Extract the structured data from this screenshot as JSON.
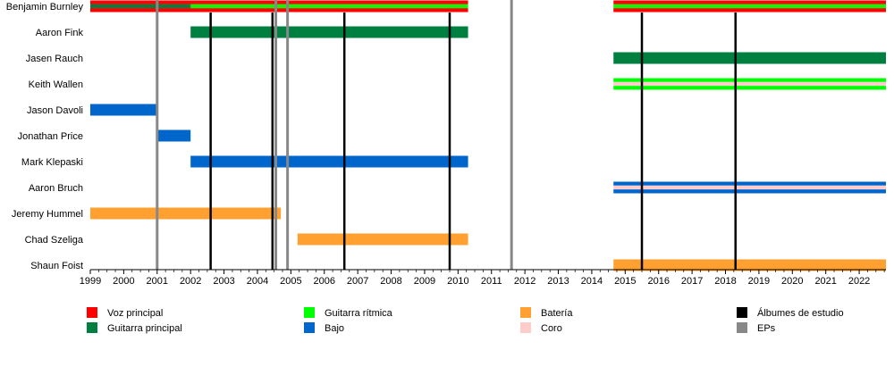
{
  "chart_data": {
    "type": "timeline",
    "title": "",
    "xlabel": "",
    "ylabel": "",
    "xlim": [
      1999,
      2022.8
    ],
    "x_ticks": [
      1999,
      2000,
      2001,
      2002,
      2003,
      2004,
      2005,
      2006,
      2007,
      2008,
      2009,
      2010,
      2011,
      2012,
      2013,
      2014,
      2015,
      2016,
      2017,
      2018,
      2019,
      2020,
      2021,
      2022
    ],
    "role_colors": {
      "voz": "#ff0000",
      "guitarra_principal": "#008040",
      "guitarra_ritmica": "#00ff00",
      "bajo": "#0066cc",
      "bateria": "#ffa030",
      "coro": "#ffcccc",
      "albumes": "#000000",
      "eps": "#888888"
    },
    "members": [
      {
        "name": "Benjamin Burnley",
        "bars": [
          {
            "start": 1999,
            "end": 2010.3,
            "roles": [
              "voz",
              "guitarra_ritmica",
              "voz"
            ]
          },
          {
            "start": 1999,
            "end": 2002,
            "roles": [
              "voz",
              "guitarra_principal",
              "voz"
            ]
          },
          {
            "start": 2014.65,
            "end": 2022.8,
            "roles": [
              "voz",
              "guitarra_ritmica",
              "voz"
            ]
          }
        ]
      },
      {
        "name": "Aaron Fink",
        "bars": [
          {
            "start": 2002,
            "end": 2010.3,
            "roles": [
              "guitarra_principal"
            ]
          }
        ]
      },
      {
        "name": "Jasen Rauch",
        "bars": [
          {
            "start": 2014.65,
            "end": 2022.8,
            "roles": [
              "guitarra_principal"
            ]
          }
        ]
      },
      {
        "name": "Keith Wallen",
        "bars": [
          {
            "start": 2014.65,
            "end": 2022.8,
            "roles": [
              "guitarra_ritmica",
              "coro",
              "guitarra_ritmica"
            ]
          }
        ]
      },
      {
        "name": "Jason Davoli",
        "bars": [
          {
            "start": 1999,
            "end": 2001,
            "roles": [
              "bajo"
            ]
          }
        ]
      },
      {
        "name": "Jonathan Price",
        "bars": [
          {
            "start": 2001,
            "end": 2002,
            "roles": [
              "bajo"
            ]
          }
        ]
      },
      {
        "name": "Mark Klepaski",
        "bars": [
          {
            "start": 2002,
            "end": 2010.3,
            "roles": [
              "bajo"
            ]
          }
        ]
      },
      {
        "name": "Aaron Bruch",
        "bars": [
          {
            "start": 2014.65,
            "end": 2022.8,
            "roles": [
              "bajo",
              "coro",
              "bajo"
            ]
          }
        ]
      },
      {
        "name": "Jeremy Hummel",
        "bars": [
          {
            "start": 1999,
            "end": 2004.7,
            "roles": [
              "bateria"
            ]
          }
        ]
      },
      {
        "name": "Chad Szeliga",
        "bars": [
          {
            "start": 2005.2,
            "end": 2010.3,
            "roles": [
              "bateria"
            ]
          }
        ]
      },
      {
        "name": "Shaun Foist",
        "bars": [
          {
            "start": 2014.65,
            "end": 2022.8,
            "roles": [
              "bateria"
            ]
          }
        ]
      }
    ],
    "album_releases": [
      2002.6,
      2004.45,
      2006.6,
      2009.75,
      2015.5,
      2018.3
    ],
    "ep_releases": [
      2001.0,
      2004.55,
      2004.9,
      2011.6
    ],
    "legend": [
      {
        "label": "Voz principal",
        "role": "voz"
      },
      {
        "label": "Guitarra principal",
        "role": "guitarra_principal"
      },
      {
        "label": "Guitarra rítmica",
        "role": "guitarra_ritmica"
      },
      {
        "label": "Bajo",
        "role": "bajo"
      },
      {
        "label": "Batería",
        "role": "bateria"
      },
      {
        "label": "Coro",
        "role": "coro"
      },
      {
        "label": "Álbumes de estudio",
        "role": "albumes"
      },
      {
        "label": "EPs",
        "role": "eps"
      }
    ]
  }
}
